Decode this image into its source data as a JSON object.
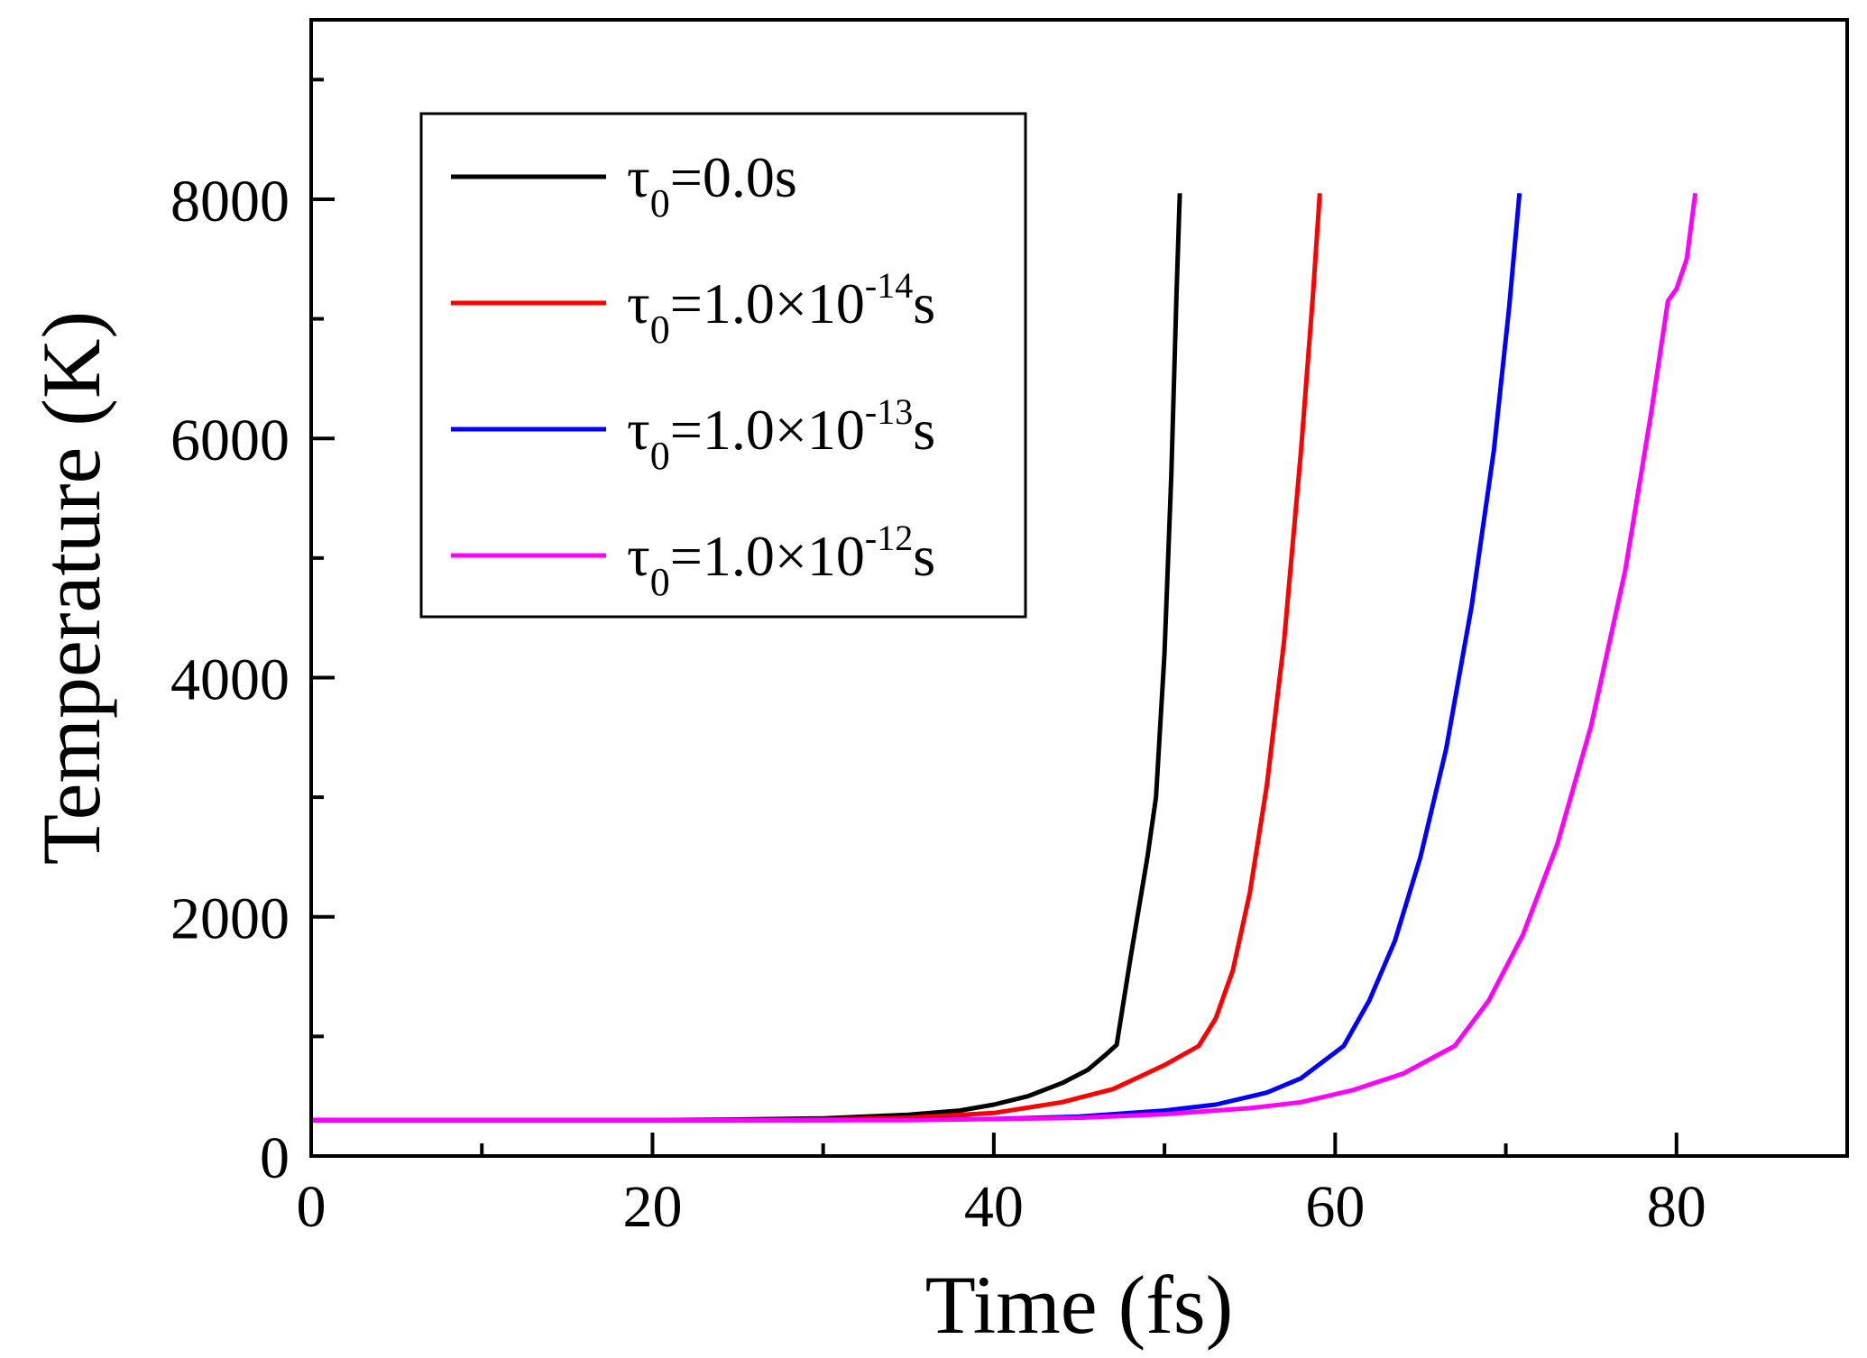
{
  "chart_data": {
    "type": "line",
    "xlabel": "Time (fs)",
    "ylabel": "Temperature (K)",
    "xlim": [
      0,
      90
    ],
    "ylim": [
      0,
      9500
    ],
    "xticks": [
      0,
      20,
      40,
      60,
      80
    ],
    "xticks_minor": [
      10,
      30,
      50,
      70,
      90
    ],
    "yticks": [
      0,
      2000,
      4000,
      6000,
      8000
    ],
    "yticks_minor": [
      1000,
      3000,
      5000,
      7000,
      9000
    ],
    "grid": false,
    "legend_position": "top-left",
    "series": [
      {
        "name": "τ0=0.0s",
        "legend": {
          "symbol": "τ",
          "sub": "0",
          "text": "=0.0s",
          "sup": "",
          "suffix": ""
        },
        "color": "#000000",
        "x": [
          0,
          20,
          25,
          30,
          35,
          38,
          40,
          42,
          44,
          45.5,
          46.5,
          47.2,
          48,
          49,
          49.5,
          50,
          50.4,
          50.7,
          50.9
        ],
        "y": [
          300,
          300,
          305,
          315,
          345,
          380,
          430,
          500,
          610,
          720,
          840,
          930,
          1650,
          2500,
          3000,
          4200,
          5700,
          7200,
          8050
        ]
      },
      {
        "name": "τ0=1.0×10-14s",
        "legend": {
          "symbol": "τ",
          "sub": "0",
          "text": "=1.0×10",
          "sup": "-14",
          "suffix": "s"
        },
        "color": "#ff0000",
        "x": [
          0,
          25,
          30,
          35,
          40,
          44,
          47,
          50,
          52,
          53,
          54,
          55,
          56,
          57,
          58,
          58.7,
          59.1
        ],
        "y": [
          300,
          300,
          305,
          320,
          360,
          450,
          560,
          760,
          920,
          1150,
          1550,
          2200,
          3100,
          4300,
          5900,
          7200,
          8050
        ]
      },
      {
        "name": "τ0=1.0×10-13s",
        "legend": {
          "symbol": "τ",
          "sub": "0",
          "text": "=1.0×10",
          "sup": "-13",
          "suffix": "s"
        },
        "color": "#0000ff",
        "x": [
          0,
          30,
          40,
          45,
          50,
          53,
          56,
          58,
          60.5,
          62,
          63.5,
          65,
          66.5,
          68,
          69.3,
          70.2,
          70.8
        ],
        "y": [
          300,
          300,
          310,
          330,
          380,
          430,
          530,
          650,
          920,
          1300,
          1800,
          2500,
          3400,
          4600,
          5900,
          7100,
          8050
        ]
      },
      {
        "name": "τ0=1.0×10-12s",
        "legend": {
          "symbol": "τ",
          "sub": "0",
          "text": "=1.0×10",
          "sup": "-12",
          "suffix": "s"
        },
        "color": "#ff00ff",
        "x": [
          0,
          35,
          45,
          50,
          55,
          58,
          61,
          64,
          67,
          69,
          71,
          73,
          75,
          77,
          78.5,
          79.5,
          80,
          80.6,
          81.1
        ],
        "y": [
          300,
          300,
          320,
          350,
          400,
          450,
          550,
          690,
          920,
          1300,
          1850,
          2600,
          3600,
          4900,
          6200,
          7150,
          7250,
          7500,
          8050
        ]
      }
    ]
  }
}
